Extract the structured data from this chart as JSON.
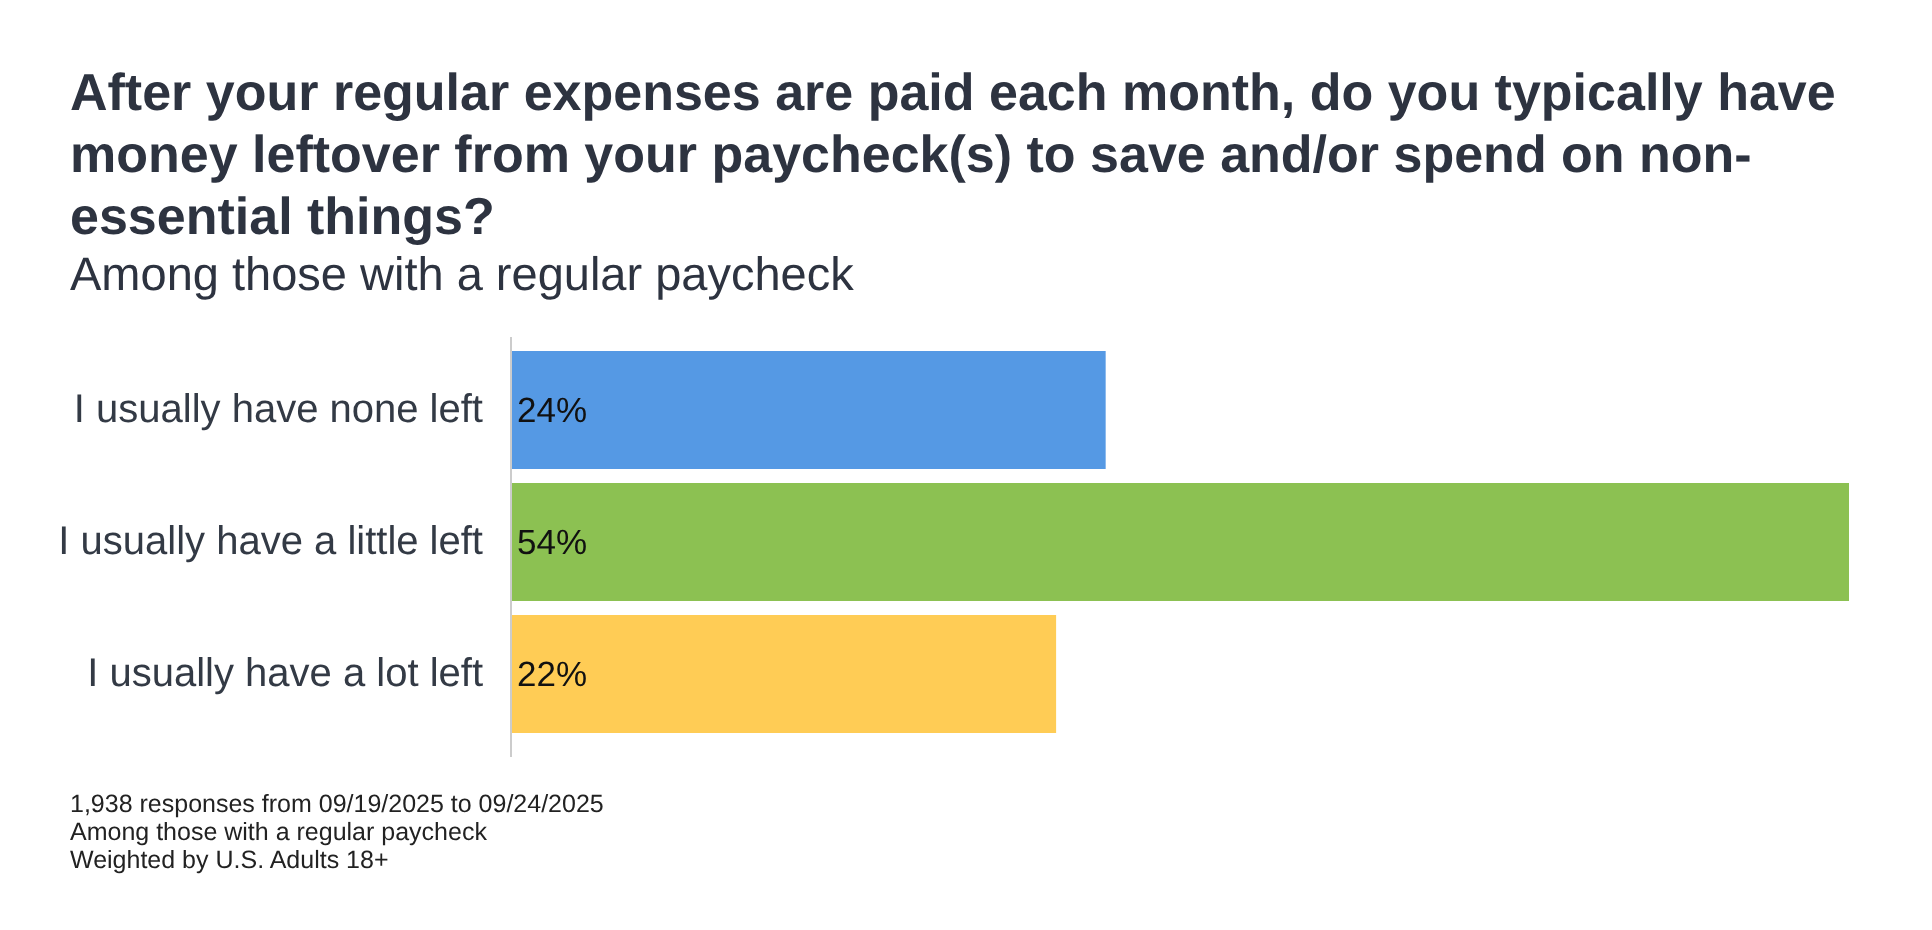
{
  "chart_data": {
    "type": "bar",
    "orientation": "horizontal",
    "title": "After your regular expenses are paid each month, do you typically have money leftover from your paycheck(s) to save and/or spend on non-essential things?",
    "subtitle": "Among those with a regular paycheck",
    "categories": [
      "I usually have none left",
      "I usually have a little left",
      "I usually have a lot left"
    ],
    "values": [
      24,
      54,
      22
    ],
    "colors": [
      "#5599e4",
      "#8cc152",
      "#ffcc55"
    ],
    "value_labels": [
      "24%",
      "54%",
      "22%"
    ],
    "xlim": [
      0,
      54
    ],
    "tick_labels": "y",
    "annotations": [
      "1,938 responses from 09/19/2025 to 09/24/2025",
      "Among those with a regular paycheck",
      "Weighted by U.S. Adults 18+"
    ]
  }
}
